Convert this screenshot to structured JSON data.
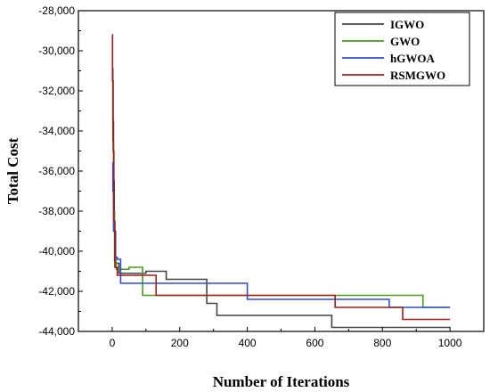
{
  "chart_data": {
    "type": "line",
    "step": true,
    "xlabel": "Number of Iterations",
    "ylabel": "Total Cost",
    "xlim": [
      -100,
      1100
    ],
    "ylim": [
      -44000,
      -28000
    ],
    "xticks": [
      0,
      200,
      400,
      600,
      800,
      1000
    ],
    "yticks": [
      -44000,
      -42000,
      -40000,
      -38000,
      -36000,
      -34000,
      -32000,
      -30000,
      -28000
    ],
    "xtick_labels": [
      "0",
      "200",
      "400",
      "600",
      "800",
      "1000"
    ],
    "ytick_labels": [
      "-44,000",
      "-42,000",
      "-40,000",
      "-38,000",
      "-36,000",
      "-34,000",
      "-32,000",
      "-30,000",
      "-28,000"
    ],
    "grid": false,
    "legend_position": "top-right",
    "series": [
      {
        "name": "IGWO",
        "color": "#444444",
        "x": [
          0,
          2,
          4,
          6,
          10,
          20,
          100,
          160,
          280,
          310,
          650,
          1000
        ],
        "y": [
          -30900,
          -33500,
          -36500,
          -39000,
          -40600,
          -41100,
          -41000,
          -41400,
          -42600,
          -43200,
          -43800,
          -43800
        ]
      },
      {
        "name": "GWO",
        "color": "#4c9a1f",
        "x": [
          0,
          2,
          4,
          7,
          12,
          50,
          90,
          300,
          920,
          1000
        ],
        "y": [
          -31600,
          -34500,
          -38000,
          -40500,
          -40900,
          -40800,
          -42200,
          -42200,
          -42800,
          -42800
        ]
      },
      {
        "name": "hGWOA",
        "color": "#2e4fd6",
        "x": [
          0,
          2,
          4,
          8,
          15,
          25,
          100,
          400,
          820,
          1000
        ],
        "y": [
          -35600,
          -37000,
          -39000,
          -40300,
          -40400,
          -41600,
          -41600,
          -42400,
          -42800,
          -42800
        ]
      },
      {
        "name": "RSMGWO",
        "color": "#9c1f1f",
        "x": [
          0,
          1,
          3,
          5,
          8,
          15,
          130,
          660,
          860,
          1000
        ],
        "y": [
          -29200,
          -31500,
          -35000,
          -38500,
          -40800,
          -41200,
          -42200,
          -42800,
          -43400,
          -43400
        ]
      }
    ]
  }
}
